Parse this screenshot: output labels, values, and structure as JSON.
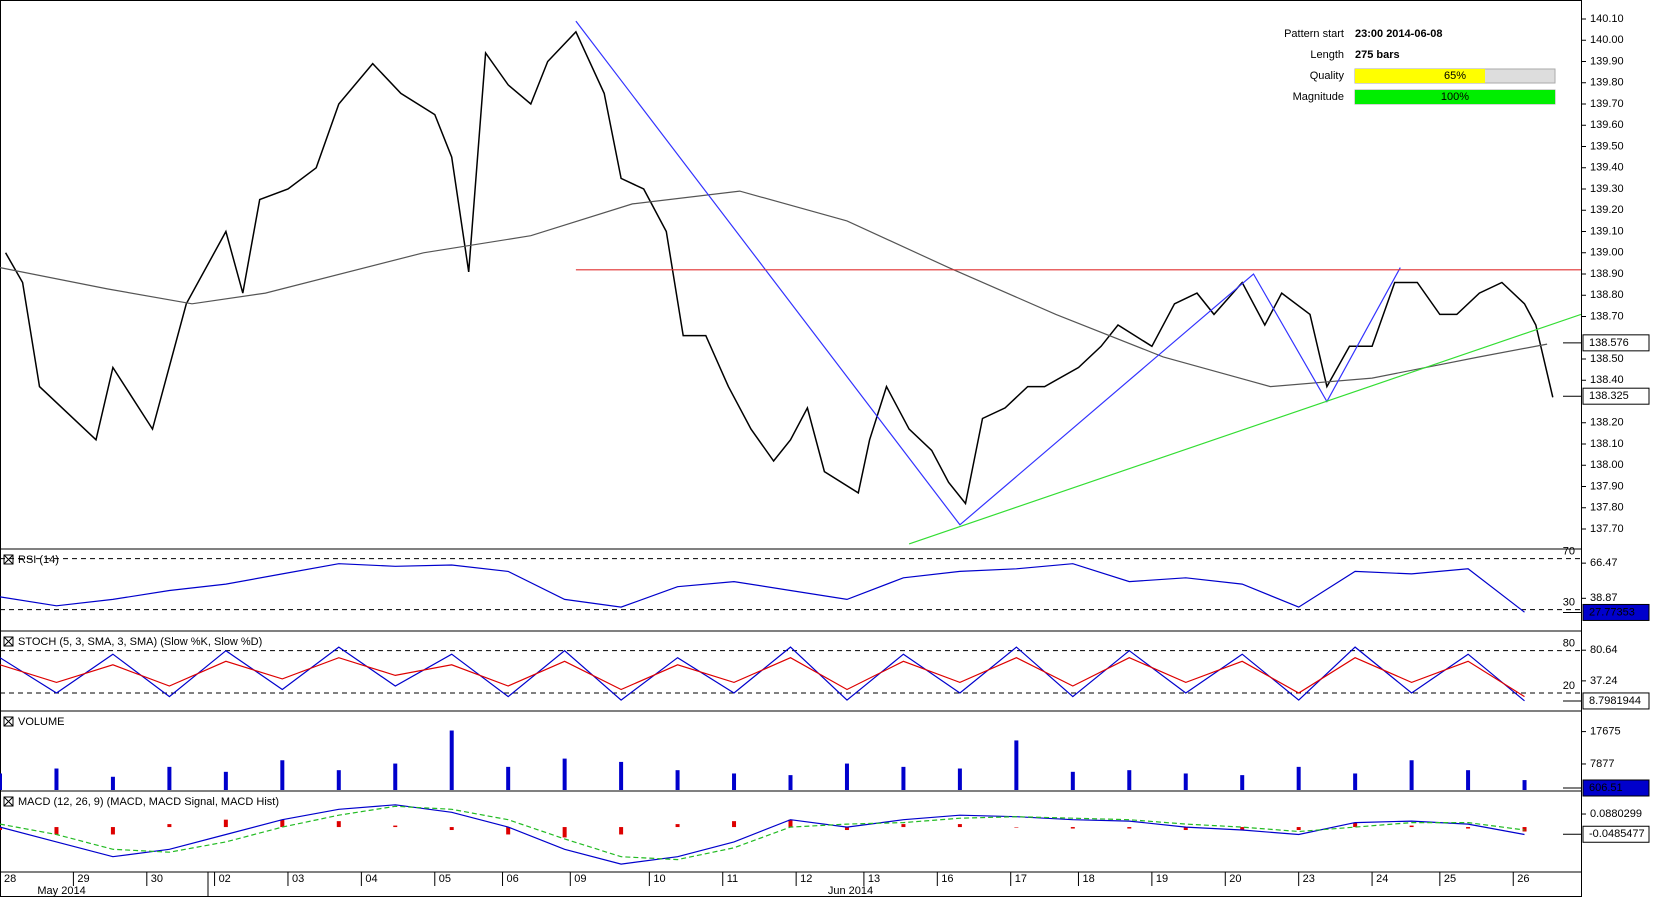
{
  "pattern_info": {
    "rows": [
      {
        "label": "Pattern start",
        "value": "23:00 2014-06-08"
      },
      {
        "label": "Length",
        "value": "275 bars"
      },
      {
        "label": "Quality",
        "value": 65,
        "value_label": "65%",
        "color": "#ffff00"
      },
      {
        "label": "Magnitude",
        "value": 100,
        "value_label": "100%",
        "color": "#00ee00"
      }
    ]
  },
  "x_axis": {
    "ticks": [
      {
        "value": 0,
        "label": "28"
      },
      {
        "value": 13,
        "label": "29"
      },
      {
        "value": 26,
        "label": "30"
      },
      {
        "value": 38,
        "label": "02"
      },
      {
        "value": 51,
        "label": "03"
      },
      {
        "value": 64,
        "label": "04"
      },
      {
        "value": 77,
        "label": "05"
      },
      {
        "value": 89,
        "label": "06"
      },
      {
        "value": 101,
        "label": "09"
      },
      {
        "value": 115,
        "label": "10"
      },
      {
        "value": 128,
        "label": "11"
      },
      {
        "value": 141,
        "label": "12"
      },
      {
        "value": 153,
        "label": "13"
      },
      {
        "value": 166,
        "label": "16"
      },
      {
        "value": 179,
        "label": "17"
      },
      {
        "value": 191,
        "label": "18"
      },
      {
        "value": 204,
        "label": "19"
      },
      {
        "value": 217,
        "label": "20"
      },
      {
        "value": 230,
        "label": "23"
      },
      {
        "value": 243,
        "label": "24"
      },
      {
        "value": 255,
        "label": "25"
      },
      {
        "value": 268,
        "label": "26"
      }
    ],
    "periods": [
      {
        "value": 13,
        "label": "May 2014"
      },
      {
        "value": 153,
        "label": "Jun 2014"
      }
    ]
  },
  "chart_data": [
    {
      "type": "line",
      "xlim": [
        0,
        280
      ],
      "ylim": [
        137.62,
        140.18
      ],
      "yticks": [
        {
          "value": 137.7,
          "label": "137.70"
        },
        {
          "value": 137.8,
          "label": "137.80"
        },
        {
          "value": 137.9,
          "label": "137.90"
        },
        {
          "value": 138.0,
          "label": "138.00"
        },
        {
          "value": 138.1,
          "label": "138.10"
        },
        {
          "value": 138.2,
          "label": "138.20"
        },
        {
          "value": 138.4,
          "label": "138.40"
        },
        {
          "value": 138.5,
          "label": "138.50"
        },
        {
          "value": 138.7,
          "label": "138.70"
        },
        {
          "value": 138.8,
          "label": "138.80"
        },
        {
          "value": 138.9,
          "label": "138.90"
        },
        {
          "value": 139.0,
          "label": "139.00"
        },
        {
          "value": 139.1,
          "label": "139.10"
        },
        {
          "value": 139.2,
          "label": "139.20"
        },
        {
          "value": 139.3,
          "label": "139.30"
        },
        {
          "value": 139.4,
          "label": "139.40"
        },
        {
          "value": 139.5,
          "label": "139.50"
        },
        {
          "value": 139.6,
          "label": "139.60"
        },
        {
          "value": 139.7,
          "label": "139.70"
        },
        {
          "value": 139.8,
          "label": "139.80"
        },
        {
          "value": 139.9,
          "label": "139.90"
        },
        {
          "value": 140.0,
          "label": "140.00"
        },
        {
          "value": 140.1,
          "label": "140.10"
        }
      ],
      "series": [
        {
          "color": "#000000",
          "x": [
            1,
            4,
            7,
            17,
            20,
            27,
            33,
            40,
            43,
            46,
            51,
            56,
            60,
            66,
            71,
            77,
            80,
            83,
            86,
            90,
            94,
            97,
            102,
            107,
            110,
            114,
            118,
            121,
            125,
            129,
            133,
            137,
            140,
            143,
            146,
            152,
            154,
            157,
            161,
            165,
            168,
            171,
            174,
            178,
            182,
            185,
            191,
            195,
            198,
            201,
            204,
            208,
            212,
            215,
            220,
            224,
            227,
            232,
            235,
            239,
            243,
            247,
            251,
            255,
            258,
            262,
            266,
            270,
            272,
            275
          ],
          "values": [
            139.0,
            138.86,
            138.37,
            138.12,
            138.46,
            138.17,
            138.76,
            139.1,
            138.81,
            139.25,
            139.3,
            139.4,
            139.7,
            139.89,
            139.75,
            139.65,
            139.45,
            138.91,
            139.94,
            139.79,
            139.7,
            139.9,
            140.04,
            139.75,
            139.35,
            139.3,
            139.1,
            138.61,
            138.61,
            138.37,
            138.17,
            138.02,
            138.12,
            138.27,
            137.97,
            137.87,
            138.12,
            138.37,
            138.17,
            138.07,
            137.92,
            137.82,
            138.22,
            138.27,
            138.37,
            138.37,
            138.46,
            138.56,
            138.66,
            138.61,
            138.56,
            138.76,
            138.81,
            138.71,
            138.86,
            138.66,
            138.81,
            138.71,
            138.37,
            138.56,
            138.56,
            138.86,
            138.86,
            138.71,
            138.71,
            138.81,
            138.86,
            138.76,
            138.66,
            138.32
          ]
        },
        {
          "color": "#555555",
          "x": [
            0,
            19,
            34,
            47,
            75,
            94,
            112,
            131,
            150,
            168,
            187,
            206,
            225,
            243,
            262,
            274
          ],
          "values": [
            138.93,
            138.83,
            138.76,
            138.81,
            139.0,
            139.08,
            139.23,
            139.29,
            139.15,
            138.93,
            138.71,
            138.51,
            138.37,
            138.41,
            138.51,
            138.57
          ]
        },
        {
          "color": "#3333ff",
          "x": [
            102,
            170,
            222,
            235,
            248
          ],
          "values": [
            140.09,
            137.72,
            138.9,
            138.3,
            138.93
          ]
        },
        {
          "color": "#e03030",
          "x": [
            102,
            280
          ],
          "values": [
            138.92,
            138.92
          ]
        },
        {
          "color": "#33dd33",
          "x": [
            161,
            280
          ],
          "values": [
            137.63,
            138.71
          ]
        }
      ],
      "last": [
        138.576,
        138.325
      ]
    },
    {
      "type": "line",
      "title": "RSI (14)",
      "xlim": [
        0,
        280
      ],
      "ylim": [
        14,
        76
      ],
      "levels": [
        70,
        30
      ],
      "yticks": [
        66.47,
        38.87
      ],
      "last": [
        27.77353
      ],
      "series": [
        {
          "color": "#0000cc",
          "x": [
            0,
            10,
            20,
            30,
            40,
            50,
            60,
            70,
            80,
            90,
            100,
            110,
            120,
            130,
            140,
            150,
            160,
            170,
            180,
            190,
            200,
            210,
            220,
            230,
            240,
            250,
            260,
            270
          ],
          "values": [
            40,
            33,
            38,
            45,
            50,
            58,
            66,
            64,
            65,
            60,
            38,
            32,
            48,
            52,
            45,
            38,
            55,
            60,
            62,
            66,
            52,
            55,
            50,
            32,
            60,
            58,
            62,
            28
          ]
        }
      ]
    },
    {
      "type": "line",
      "title": "STOCH (5, 3, SMA, 3, SMA) (Slow %K, Slow %D)",
      "xlim": [
        0,
        280
      ],
      "ylim": [
        -4,
        105
      ],
      "levels": [
        80,
        20
      ],
      "yticks": [
        80.64,
        37.24
      ],
      "last": [
        8.7981944
      ],
      "series": [
        {
          "color": "#0000cc",
          "x": [
            0,
            10,
            20,
            30,
            40,
            50,
            60,
            70,
            80,
            90,
            100,
            110,
            120,
            130,
            140,
            150,
            160,
            170,
            180,
            190,
            200,
            210,
            220,
            230,
            240,
            250,
            260,
            270
          ],
          "values": [
            70,
            20,
            75,
            15,
            80,
            25,
            85,
            30,
            75,
            15,
            80,
            10,
            70,
            20,
            85,
            10,
            75,
            20,
            85,
            15,
            80,
            20,
            75,
            10,
            85,
            20,
            75,
            9
          ]
        },
        {
          "color": "#dd0000",
          "x": [
            0,
            10,
            20,
            30,
            40,
            50,
            60,
            70,
            80,
            90,
            100,
            110,
            120,
            130,
            140,
            150,
            160,
            170,
            180,
            190,
            200,
            210,
            220,
            230,
            240,
            250,
            260,
            270
          ],
          "values": [
            60,
            35,
            60,
            30,
            65,
            40,
            70,
            45,
            60,
            30,
            65,
            25,
            60,
            35,
            70,
            25,
            65,
            35,
            70,
            30,
            70,
            35,
            65,
            20,
            70,
            35,
            65,
            15
          ]
        }
      ]
    },
    {
      "type": "bar",
      "title": "VOLUME",
      "xlim": [
        0,
        280
      ],
      "ylim": [
        0,
        23300
      ],
      "yticks": [
        17675,
        7877
      ],
      "last": [
        606.51
      ],
      "series": [
        {
          "color": "#0000cc",
          "type": "bar",
          "x": [
            0,
            10,
            20,
            30,
            40,
            50,
            60,
            70,
            80,
            90,
            100,
            110,
            120,
            130,
            140,
            150,
            160,
            170,
            180,
            190,
            200,
            210,
            220,
            230,
            240,
            250,
            260,
            270
          ],
          "values": [
            5000,
            6500,
            4000,
            7000,
            5500,
            9000,
            6000,
            8000,
            18000,
            7000,
            9500,
            8500,
            6000,
            5000,
            4500,
            8000,
            7000,
            6500,
            15000,
            5500,
            6000,
            5000,
            4500,
            7000,
            5000,
            9000,
            6000,
            3000
          ]
        }
      ]
    },
    {
      "type": "line",
      "title": "MACD (12, 26, 9) (MACD, MACD Signal, MACD Hist)",
      "xlim": [
        0,
        280
      ],
      "ylim": [
        -0.29,
        0.23
      ],
      "yticks": [
        0.0880299
      ],
      "last": [
        -0.0485477
      ],
      "series": [
        {
          "color": "#dd0000",
          "type": "bar",
          "x": [
            0,
            10,
            20,
            30,
            40,
            50,
            60,
            70,
            80,
            90,
            100,
            110,
            120,
            130,
            140,
            150,
            160,
            170,
            180,
            190,
            200,
            210,
            220,
            230,
            240,
            250,
            260,
            270
          ],
          "values": [
            -0.02,
            -0.05,
            -0.05,
            0.02,
            0.05,
            0.05,
            0.04,
            0.01,
            -0.02,
            -0.05,
            -0.07,
            -0.05,
            0.02,
            0.04,
            0.05,
            -0.02,
            0.02,
            0.02,
            0.0,
            -0.01,
            -0.01,
            -0.02,
            -0.02,
            -0.02,
            0.03,
            0.01,
            -0.01,
            -0.03
          ]
        },
        {
          "color": "#0000cc",
          "x": [
            0,
            10,
            20,
            30,
            40,
            50,
            60,
            70,
            80,
            90,
            100,
            110,
            120,
            130,
            140,
            150,
            160,
            170,
            180,
            190,
            200,
            210,
            220,
            230,
            240,
            250,
            260,
            270
          ],
          "values": [
            0.0,
            -0.1,
            -0.2,
            -0.15,
            -0.05,
            0.05,
            0.12,
            0.15,
            0.1,
            0.0,
            -0.15,
            -0.25,
            -0.2,
            -0.1,
            0.05,
            0.0,
            0.05,
            0.08,
            0.07,
            0.05,
            0.04,
            0.0,
            -0.02,
            -0.05,
            0.03,
            0.04,
            0.02,
            -0.05
          ]
        },
        {
          "color": "#22bb22",
          "dashed": true,
          "x": [
            0,
            10,
            20,
            30,
            40,
            50,
            60,
            70,
            80,
            90,
            100,
            110,
            120,
            130,
            140,
            150,
            160,
            170,
            180,
            190,
            200,
            210,
            220,
            230,
            240,
            250,
            260,
            270
          ],
          "values": [
            0.02,
            -0.05,
            -0.15,
            -0.17,
            -0.1,
            0.0,
            0.08,
            0.14,
            0.12,
            0.05,
            -0.08,
            -0.2,
            -0.22,
            -0.14,
            0.0,
            0.02,
            0.03,
            0.06,
            0.07,
            0.06,
            0.05,
            0.02,
            0.0,
            -0.03,
            0.0,
            0.03,
            0.03,
            -0.02
          ]
        }
      ]
    }
  ]
}
